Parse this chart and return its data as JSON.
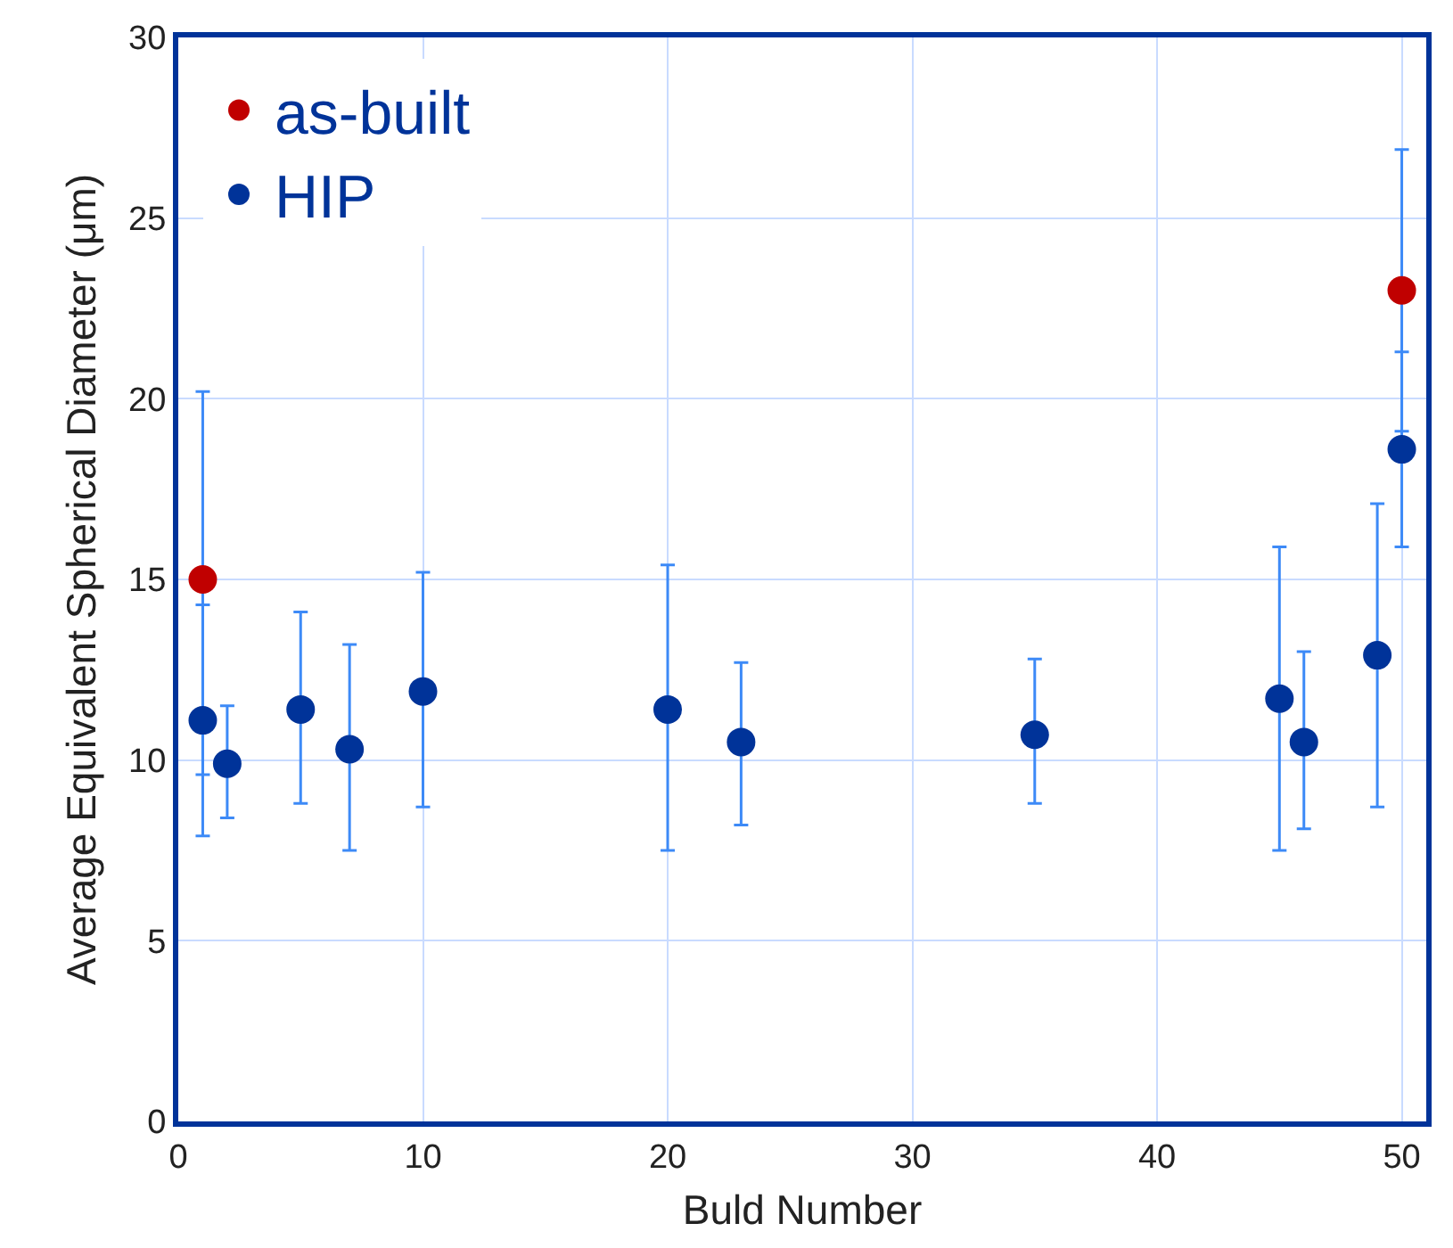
{
  "chart_data": {
    "type": "scatter",
    "xlabel": "Buld Number",
    "ylabel": "Average Equivalent Spherical Diameter (μm)",
    "xlim": [
      0,
      51
    ],
    "xticks": [
      0,
      10,
      20,
      30,
      40,
      50
    ],
    "ylim": [
      0,
      30
    ],
    "yticks": [
      0,
      5,
      10,
      15,
      20,
      25,
      30
    ],
    "grid": true,
    "legend": "top left",
    "marker": "circle",
    "series": [
      {
        "name": "as-built",
        "color": "#c00000",
        "x": [
          1,
          50
        ],
        "values": [
          15.0,
          23.0
        ],
        "errors": [
          [
            9.6,
            20.2
          ],
          [
            19.1,
            26.9
          ]
        ]
      },
      {
        "name": "HIP",
        "color": "#003399",
        "x": [
          1,
          2,
          5,
          7,
          10,
          20,
          23,
          35,
          45,
          46,
          49,
          50
        ],
        "values": [
          11.1,
          9.9,
          11.4,
          10.3,
          11.9,
          11.4,
          10.5,
          10.7,
          11.7,
          10.5,
          12.9,
          18.6
        ],
        "errors": [
          [
            7.9,
            14.3
          ],
          [
            8.4,
            11.5
          ],
          [
            8.8,
            14.1
          ],
          [
            7.5,
            13.2
          ],
          [
            8.7,
            15.2
          ],
          [
            7.5,
            15.4
          ],
          [
            8.2,
            12.7
          ],
          [
            8.8,
            12.8
          ],
          [
            7.5,
            15.9
          ],
          [
            8.1,
            13.0
          ],
          [
            8.7,
            17.1
          ],
          [
            15.9,
            21.3
          ]
        ]
      }
    ]
  }
}
